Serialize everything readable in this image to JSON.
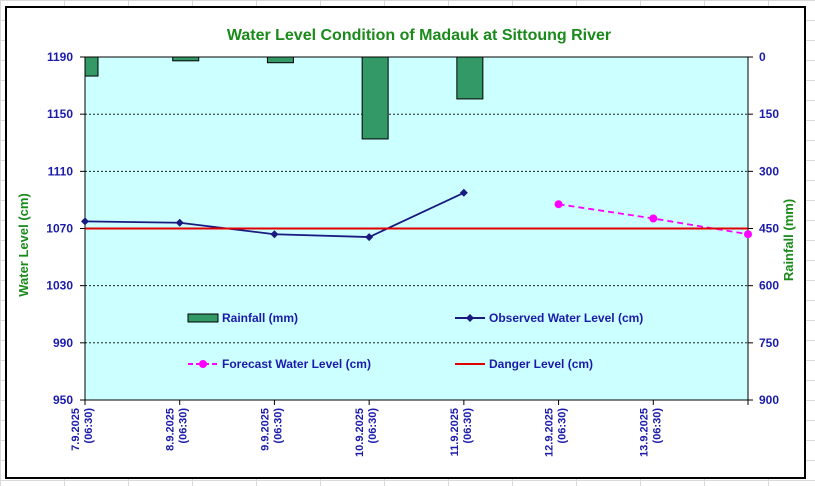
{
  "chart_data": {
    "type": "bar+line",
    "title": "Water Level Condition of Madauk at Sittoung River",
    "categories": [
      "7.9.2025\n(06:30)",
      "8.9.2025\n(06:30)",
      "9.9.2025\n(06:30)",
      "10.9.2025\n(06:30)",
      "11.9.2025\n(06:30)",
      "12.9.2025\n(06:30)",
      "13.9.2025\n(06:30)",
      ""
    ],
    "ylabel": "Water Level (cm)",
    "y2label": "Rainfall (mm)",
    "ylim": [
      950,
      1190
    ],
    "yticks": [
      950,
      990,
      1030,
      1070,
      1110,
      1150,
      1190
    ],
    "y2lim": [
      900,
      0
    ],
    "y2ticks": [
      0,
      150,
      300,
      450,
      600,
      750,
      900
    ],
    "grid": true,
    "legend_position": "inside-center",
    "series": [
      {
        "name": "Rainfall (mm)",
        "kind": "bar",
        "axis": "right",
        "color": "#339966",
        "values": [
          50,
          10,
          15,
          215,
          110,
          null,
          null,
          null
        ]
      },
      {
        "name": "Observed Water Level (cm)",
        "kind": "line",
        "axis": "left",
        "color": "#1a1a80",
        "marker": "diamond",
        "values": [
          1075,
          1074,
          1066,
          1064,
          1095,
          null,
          null,
          null
        ]
      },
      {
        "name": "Forecast Water Level (cm)",
        "kind": "line",
        "axis": "left",
        "color": "#ff00ff",
        "dash": true,
        "marker": "circle",
        "values": [
          null,
          null,
          null,
          null,
          null,
          1087,
          1077,
          1066
        ]
      },
      {
        "name": "Danger Level (cm)",
        "kind": "line",
        "axis": "left",
        "color": "#e00000",
        "values": [
          1070,
          1070,
          1070,
          1070,
          1070,
          1070,
          1070,
          1070
        ]
      }
    ],
    "colors": {
      "plot_bg": "#ccffff",
      "title": "#1a8a1a",
      "tick_text": "#1b1baa",
      "axis_label": "#1a8a1a"
    }
  }
}
